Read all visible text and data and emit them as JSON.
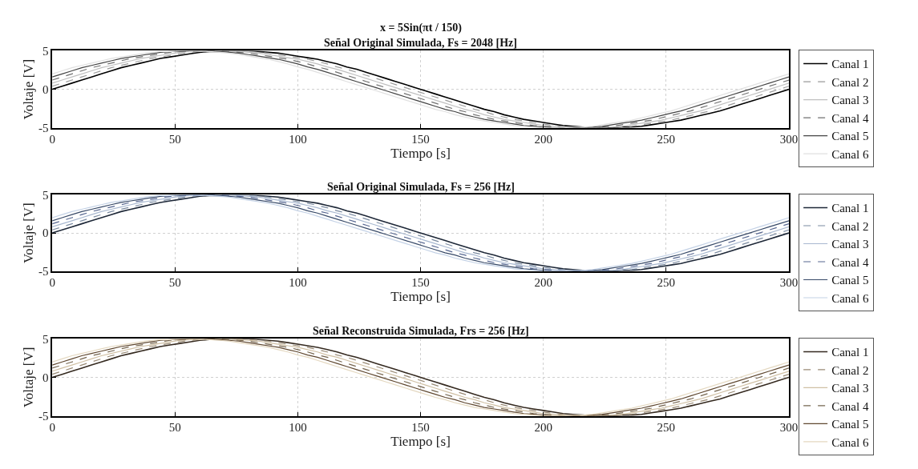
{
  "chart_data": [
    {
      "type": "line",
      "title": "x = 5Sin(πt / 150)",
      "subtitle": "Señal Original Simulada, Fs = 2048 [Hz]",
      "xlabel": "Tiempo [s]",
      "ylabel": "Voltaje [V]",
      "xlim": [
        0,
        300
      ],
      "xticks": [
        0,
        50,
        100,
        150,
        200,
        250,
        300
      ],
      "ylim": [
        -5,
        5
      ],
      "yticks": [
        -5,
        0,
        5
      ],
      "grid": true,
      "legend": "right",
      "marker": "none",
      "x": [
        0,
        4,
        8,
        12,
        16,
        20,
        24,
        28,
        32,
        36,
        40,
        44,
        48,
        52,
        56,
        60,
        64,
        68,
        72,
        76,
        80,
        84,
        88,
        92,
        96,
        100,
        104,
        108,
        112,
        116,
        120,
        124,
        128,
        132,
        136,
        140,
        144,
        148,
        152,
        156,
        160,
        164,
        168,
        172,
        176,
        180,
        184,
        188,
        192,
        196,
        200,
        204,
        208,
        212,
        216,
        220,
        224,
        228,
        232,
        236,
        240,
        244,
        248,
        252,
        256,
        260,
        264,
        268,
        272,
        276,
        280,
        284,
        288,
        292,
        296,
        300
      ],
      "series": [
        {
          "name": "Canal 1",
          "color": "#000000",
          "line_style": "solid",
          "values": [
            0,
            0.4,
            0.8,
            1.2,
            1.6,
            2.0,
            2.4,
            2.8,
            3.1,
            3.4,
            3.7,
            4.0,
            4.2,
            4.4,
            4.6,
            4.8,
            4.9,
            4.9,
            5.0,
            5.0,
            5.0,
            4.9,
            4.8,
            4.7,
            4.5,
            4.3,
            4.1,
            3.9,
            3.6,
            3.3,
            2.9,
            2.6,
            2.2,
            1.8,
            1.4,
            1.0,
            0.6,
            0.2,
            -0.2,
            -0.6,
            -1.0,
            -1.4,
            -1.8,
            -2.2,
            -2.6,
            -2.9,
            -3.3,
            -3.6,
            -3.9,
            -4.1,
            -4.3,
            -4.5,
            -4.7,
            -4.8,
            -4.9,
            -5.0,
            -5.0,
            -5.0,
            -4.9,
            -4.9,
            -4.8,
            -4.6,
            -4.4,
            -4.2,
            -4.0,
            -3.7,
            -3.4,
            -3.1,
            -2.8,
            -2.4,
            -2.0,
            -1.6,
            -1.2,
            -0.8,
            -0.4,
            0
          ]
        },
        {
          "name": "Canal 2",
          "color": "#9a9a9a",
          "line_style": "dashed",
          "values": [
            0.4,
            0.8,
            1.2,
            1.6,
            2.0,
            2.4,
            2.8,
            3.1,
            3.4,
            3.7,
            4.0,
            4.2,
            4.4,
            4.6,
            4.8,
            4.9,
            4.9,
            5.0,
            5.0,
            5.0,
            4.9,
            4.8,
            4.7,
            4.5,
            4.3,
            4.1,
            3.9,
            3.6,
            3.3,
            2.9,
            2.6,
            2.2,
            1.8,
            1.4,
            1.0,
            0.6,
            0.2,
            -0.2,
            -0.6,
            -1.0,
            -1.4,
            -1.8,
            -2.2,
            -2.6,
            -2.9,
            -3.3,
            -3.6,
            -3.9,
            -4.1,
            -4.3,
            -4.5,
            -4.7,
            -4.8,
            -4.9,
            -5.0,
            -5.0,
            -5.0,
            -4.9,
            -4.9,
            -4.8,
            -4.6,
            -4.4,
            -4.2,
            -4.0,
            -3.7,
            -3.4,
            -3.1,
            -2.8,
            -2.4,
            -2.0,
            -1.6,
            -1.2,
            -0.8,
            -0.4,
            0,
            0.4
          ]
        },
        {
          "name": "Canal 3",
          "color": "#c0c0c0",
          "line_style": "solid",
          "values": [
            0.8,
            1.2,
            1.6,
            2.0,
            2.4,
            2.8,
            3.1,
            3.4,
            3.7,
            4.0,
            4.2,
            4.4,
            4.6,
            4.8,
            4.9,
            4.9,
            5.0,
            5.0,
            5.0,
            4.9,
            4.8,
            4.7,
            4.5,
            4.3,
            4.1,
            3.9,
            3.6,
            3.3,
            2.9,
            2.6,
            2.2,
            1.8,
            1.4,
            1.0,
            0.6,
            0.2,
            -0.2,
            -0.6,
            -1.0,
            -1.4,
            -1.8,
            -2.2,
            -2.6,
            -2.9,
            -3.3,
            -3.6,
            -3.9,
            -4.1,
            -4.3,
            -4.5,
            -4.7,
            -4.8,
            -4.9,
            -5.0,
            -5.0,
            -5.0,
            -4.9,
            -4.9,
            -4.8,
            -4.6,
            -4.4,
            -4.2,
            -4.0,
            -3.7,
            -3.4,
            -3.1,
            -2.8,
            -2.4,
            -2.0,
            -1.6,
            -1.2,
            -0.8,
            -0.4,
            0,
            0.4,
            0.8
          ]
        },
        {
          "name": "Canal 4",
          "color": "#707070",
          "line_style": "dashed",
          "values": [
            1.2,
            1.6,
            2.0,
            2.4,
            2.8,
            3.1,
            3.4,
            3.7,
            4.0,
            4.2,
            4.4,
            4.6,
            4.8,
            4.9,
            4.9,
            5.0,
            5.0,
            5.0,
            4.9,
            4.8,
            4.7,
            4.5,
            4.3,
            4.1,
            3.9,
            3.6,
            3.3,
            2.9,
            2.6,
            2.2,
            1.8,
            1.4,
            1.0,
            0.6,
            0.2,
            -0.2,
            -0.6,
            -1.0,
            -1.4,
            -1.8,
            -2.2,
            -2.6,
            -2.9,
            -3.3,
            -3.6,
            -3.9,
            -4.1,
            -4.3,
            -4.5,
            -4.7,
            -4.8,
            -4.9,
            -5.0,
            -5.0,
            -5.0,
            -4.9,
            -4.9,
            -4.8,
            -4.6,
            -4.4,
            -4.2,
            -4.0,
            -3.7,
            -3.4,
            -3.1,
            -2.8,
            -2.4,
            -2.0,
            -1.6,
            -1.2,
            -0.8,
            -0.4,
            0,
            0.4,
            0.8,
            1.2
          ]
        },
        {
          "name": "Canal 5",
          "color": "#454545",
          "line_style": "solid",
          "values": [
            1.6,
            2.0,
            2.4,
            2.8,
            3.1,
            3.4,
            3.7,
            4.0,
            4.2,
            4.4,
            4.6,
            4.8,
            4.9,
            4.9,
            5.0,
            5.0,
            5.0,
            4.9,
            4.8,
            4.7,
            4.5,
            4.3,
            4.1,
            3.9,
            3.6,
            3.3,
            2.9,
            2.6,
            2.2,
            1.8,
            1.4,
            1.0,
            0.6,
            0.2,
            -0.2,
            -0.6,
            -1.0,
            -1.4,
            -1.8,
            -2.2,
            -2.6,
            -2.9,
            -3.3,
            -3.6,
            -3.9,
            -4.1,
            -4.3,
            -4.5,
            -4.7,
            -4.8,
            -4.9,
            -5.0,
            -5.0,
            -5.0,
            -4.9,
            -4.9,
            -4.8,
            -4.6,
            -4.4,
            -4.2,
            -4.0,
            -3.7,
            -3.4,
            -3.1,
            -2.8,
            -2.4,
            -2.0,
            -1.6,
            -1.2,
            -0.8,
            -0.4,
            0,
            0.4,
            0.8,
            1.2,
            1.6
          ]
        },
        {
          "name": "Canal 6",
          "color": "#e0e0e0",
          "line_style": "solid",
          "values": [
            2.0,
            2.4,
            2.8,
            3.1,
            3.4,
            3.7,
            4.0,
            4.2,
            4.4,
            4.6,
            4.8,
            4.9,
            4.9,
            5.0,
            5.0,
            5.0,
            4.9,
            4.8,
            4.7,
            4.5,
            4.3,
            4.1,
            3.9,
            3.6,
            3.3,
            2.9,
            2.6,
            2.2,
            1.8,
            1.4,
            1.0,
            0.6,
            0.2,
            -0.2,
            -0.6,
            -1.0,
            -1.4,
            -1.8,
            -2.2,
            -2.6,
            -2.9,
            -3.3,
            -3.6,
            -3.9,
            -4.1,
            -4.3,
            -4.5,
            -4.7,
            -4.8,
            -4.9,
            -5.0,
            -5.0,
            -5.0,
            -4.9,
            -4.9,
            -4.8,
            -4.6,
            -4.4,
            -4.2,
            -4.0,
            -3.7,
            -3.4,
            -3.1,
            -2.8,
            -2.4,
            -2.0,
            -1.6,
            -1.2,
            -0.8,
            -0.4,
            0,
            0.4,
            0.8,
            1.2,
            1.6,
            2.0
          ]
        }
      ]
    },
    {
      "type": "line",
      "title": "Señal Original Simulada, Fs = 256 [Hz]",
      "xlabel": "Tiempo [s]",
      "ylabel": "Voltaje [V]",
      "xlim": [
        0,
        300
      ],
      "xticks": [
        0,
        50,
        100,
        150,
        200,
        250,
        300
      ],
      "ylim": [
        -5,
        5
      ],
      "yticks": [
        -5,
        0,
        5
      ],
      "grid": true,
      "legend": "right",
      "marker": "none",
      "x": [
        0,
        4,
        8,
        12,
        16,
        20,
        24,
        28,
        32,
        36,
        40,
        44,
        48,
        52,
        56,
        60,
        64,
        68,
        72,
        76,
        80,
        84,
        88,
        92,
        96,
        100,
        104,
        108,
        112,
        116,
        120,
        124,
        128,
        132,
        136,
        140,
        144,
        148,
        152,
        156,
        160,
        164,
        168,
        172,
        176,
        180,
        184,
        188,
        192,
        196,
        200,
        204,
        208,
        212,
        216,
        220,
        224,
        228,
        232,
        236,
        240,
        244,
        248,
        252,
        256,
        260,
        264,
        268,
        272,
        276,
        280,
        284,
        288,
        292,
        296,
        300
      ],
      "series": [
        {
          "name": "Canal 1",
          "color": "#1e2838",
          "line_style": "solid",
          "values": [
            0,
            0.4,
            0.8,
            1.2,
            1.6,
            2.0,
            2.4,
            2.8,
            3.1,
            3.4,
            3.7,
            4.0,
            4.2,
            4.4,
            4.6,
            4.8,
            4.9,
            4.9,
            5.0,
            5.0,
            5.0,
            4.9,
            4.8,
            4.7,
            4.5,
            4.3,
            4.1,
            3.9,
            3.6,
            3.3,
            2.9,
            2.6,
            2.2,
            1.8,
            1.4,
            1.0,
            0.6,
            0.2,
            -0.2,
            -0.6,
            -1.0,
            -1.4,
            -1.8,
            -2.2,
            -2.6,
            -2.9,
            -3.3,
            -3.6,
            -3.9,
            -4.1,
            -4.3,
            -4.5,
            -4.7,
            -4.8,
            -4.9,
            -5.0,
            -5.0,
            -5.0,
            -4.9,
            -4.9,
            -4.8,
            -4.6,
            -4.4,
            -4.2,
            -4.0,
            -3.7,
            -3.4,
            -3.1,
            -2.8,
            -2.4,
            -2.0,
            -1.6,
            -1.2,
            -0.8,
            -0.4,
            0
          ]
        },
        {
          "name": "Canal 2",
          "color": "#7a8aa0",
          "line_style": "dashed",
          "values": [
            0.4,
            0.8,
            1.2,
            1.6,
            2.0,
            2.4,
            2.8,
            3.1,
            3.4,
            3.7,
            4.0,
            4.2,
            4.4,
            4.6,
            4.8,
            4.9,
            4.9,
            5.0,
            5.0,
            5.0,
            4.9,
            4.8,
            4.7,
            4.5,
            4.3,
            4.1,
            3.9,
            3.6,
            3.3,
            2.9,
            2.6,
            2.2,
            1.8,
            1.4,
            1.0,
            0.6,
            0.2,
            -0.2,
            -0.6,
            -1.0,
            -1.4,
            -1.8,
            -2.2,
            -2.6,
            -2.9,
            -3.3,
            -3.6,
            -3.9,
            -4.1,
            -4.3,
            -4.5,
            -4.7,
            -4.8,
            -4.9,
            -5.0,
            -5.0,
            -5.0,
            -4.9,
            -4.9,
            -4.8,
            -4.6,
            -4.4,
            -4.2,
            -4.0,
            -3.7,
            -3.4,
            -3.1,
            -2.8,
            -2.4,
            -2.0,
            -1.6,
            -1.2,
            -0.8,
            -0.4,
            0,
            0.4
          ]
        },
        {
          "name": "Canal 3",
          "color": "#a8b8d0",
          "line_style": "solid",
          "values": [
            0.8,
            1.2,
            1.6,
            2.0,
            2.4,
            2.8,
            3.1,
            3.4,
            3.7,
            4.0,
            4.2,
            4.4,
            4.6,
            4.8,
            4.9,
            4.9,
            5.0,
            5.0,
            5.0,
            4.9,
            4.8,
            4.7,
            4.5,
            4.3,
            4.1,
            3.9,
            3.6,
            3.3,
            2.9,
            2.6,
            2.2,
            1.8,
            1.4,
            1.0,
            0.6,
            0.2,
            -0.2,
            -0.6,
            -1.0,
            -1.4,
            -1.8,
            -2.2,
            -2.6,
            -2.9,
            -3.3,
            -3.6,
            -3.9,
            -4.1,
            -4.3,
            -4.5,
            -4.7,
            -4.8,
            -4.9,
            -5.0,
            -5.0,
            -5.0,
            -4.9,
            -4.9,
            -4.8,
            -4.6,
            -4.4,
            -4.2,
            -4.0,
            -3.7,
            -3.4,
            -3.1,
            -2.8,
            -2.4,
            -2.0,
            -1.6,
            -1.2,
            -0.8,
            -0.4,
            0,
            0.4,
            0.8
          ]
        },
        {
          "name": "Canal 4",
          "color": "#566690",
          "line_style": "dashed",
          "values": [
            1.2,
            1.6,
            2.0,
            2.4,
            2.8,
            3.1,
            3.4,
            3.7,
            4.0,
            4.2,
            4.4,
            4.6,
            4.8,
            4.9,
            4.9,
            5.0,
            5.0,
            5.0,
            4.9,
            4.8,
            4.7,
            4.5,
            4.3,
            4.1,
            3.9,
            3.6,
            3.3,
            2.9,
            2.6,
            2.2,
            1.8,
            1.4,
            1.0,
            0.6,
            0.2,
            -0.2,
            -0.6,
            -1.0,
            -1.4,
            -1.8,
            -2.2,
            -2.6,
            -2.9,
            -3.3,
            -3.6,
            -3.9,
            -4.1,
            -4.3,
            -4.5,
            -4.7,
            -4.8,
            -4.9,
            -5.0,
            -5.0,
            -5.0,
            -4.9,
            -4.9,
            -4.8,
            -4.6,
            -4.4,
            -4.2,
            -4.0,
            -3.7,
            -3.4,
            -3.1,
            -2.8,
            -2.4,
            -2.0,
            -1.6,
            -1.2,
            -0.8,
            -0.4,
            0,
            0.4,
            0.8,
            1.2
          ]
        },
        {
          "name": "Canal 5",
          "color": "#384a68",
          "line_style": "solid",
          "values": [
            1.6,
            2.0,
            2.4,
            2.8,
            3.1,
            3.4,
            3.7,
            4.0,
            4.2,
            4.4,
            4.6,
            4.8,
            4.9,
            4.9,
            5.0,
            5.0,
            5.0,
            4.9,
            4.8,
            4.7,
            4.5,
            4.3,
            4.1,
            3.9,
            3.6,
            3.3,
            2.9,
            2.6,
            2.2,
            1.8,
            1.4,
            1.0,
            0.6,
            0.2,
            -0.2,
            -0.6,
            -1.0,
            -1.4,
            -1.8,
            -2.2,
            -2.6,
            -2.9,
            -3.3,
            -3.6,
            -3.9,
            -4.1,
            -4.3,
            -4.5,
            -4.7,
            -4.8,
            -4.9,
            -5.0,
            -5.0,
            -5.0,
            -4.9,
            -4.9,
            -4.8,
            -4.6,
            -4.4,
            -4.2,
            -4.0,
            -3.7,
            -3.4,
            -3.1,
            -2.8,
            -2.4,
            -2.0,
            -1.6,
            -1.2,
            -0.8,
            -0.4,
            0,
            0.4,
            0.8,
            1.2,
            1.6
          ]
        },
        {
          "name": "Canal 6",
          "color": "#c4d2e6",
          "line_style": "solid",
          "values": [
            2.0,
            2.4,
            2.8,
            3.1,
            3.4,
            3.7,
            4.0,
            4.2,
            4.4,
            4.6,
            4.8,
            4.9,
            4.9,
            5.0,
            5.0,
            5.0,
            4.9,
            4.8,
            4.7,
            4.5,
            4.3,
            4.1,
            3.9,
            3.6,
            3.3,
            2.9,
            2.6,
            2.2,
            1.8,
            1.4,
            1.0,
            0.6,
            0.2,
            -0.2,
            -0.6,
            -1.0,
            -1.4,
            -1.8,
            -2.2,
            -2.6,
            -2.9,
            -3.3,
            -3.6,
            -3.9,
            -4.1,
            -4.3,
            -4.5,
            -4.7,
            -4.8,
            -4.9,
            -5.0,
            -5.0,
            -5.0,
            -4.9,
            -4.9,
            -4.8,
            -4.6,
            -4.4,
            -4.2,
            -4.0,
            -3.7,
            -3.4,
            -3.1,
            -2.8,
            -2.4,
            -2.0,
            -1.6,
            -1.2,
            -0.8,
            -0.4,
            0,
            0.4,
            0.8,
            1.2,
            1.6,
            2.0
          ]
        }
      ]
    },
    {
      "type": "line",
      "title": "Señal Reconstruida Simulada, Frs = 256 [Hz]",
      "xlabel": "Tiempo [s]",
      "ylabel": "Voltaje [V]",
      "xlim": [
        0,
        300
      ],
      "xticks": [
        0,
        50,
        100,
        150,
        200,
        250,
        300
      ],
      "ylim": [
        -5,
        5
      ],
      "yticks": [
        -5,
        0,
        5
      ],
      "grid": true,
      "legend": "right",
      "marker": "none",
      "x": [
        0,
        4,
        8,
        12,
        16,
        20,
        24,
        28,
        32,
        36,
        40,
        44,
        48,
        52,
        56,
        60,
        64,
        68,
        72,
        76,
        80,
        84,
        88,
        92,
        96,
        100,
        104,
        108,
        112,
        116,
        120,
        124,
        128,
        132,
        136,
        140,
        144,
        148,
        152,
        156,
        160,
        164,
        168,
        172,
        176,
        180,
        184,
        188,
        192,
        196,
        200,
        204,
        208,
        212,
        216,
        220,
        224,
        228,
        232,
        236,
        240,
        244,
        248,
        252,
        256,
        260,
        264,
        268,
        272,
        276,
        280,
        284,
        288,
        292,
        296,
        300
      ],
      "series": [
        {
          "name": "Canal 1",
          "color": "#352a20",
          "line_style": "solid",
          "values": [
            0,
            0.4,
            0.8,
            1.2,
            1.6,
            2.0,
            2.4,
            2.8,
            3.1,
            3.4,
            3.7,
            4.0,
            4.2,
            4.4,
            4.6,
            4.8,
            4.9,
            4.9,
            5.0,
            5.0,
            5.0,
            4.9,
            4.8,
            4.7,
            4.5,
            4.3,
            4.1,
            3.9,
            3.6,
            3.3,
            2.9,
            2.6,
            2.2,
            1.8,
            1.4,
            1.0,
            0.6,
            0.2,
            -0.2,
            -0.6,
            -1.0,
            -1.4,
            -1.8,
            -2.2,
            -2.6,
            -2.9,
            -3.3,
            -3.6,
            -3.9,
            -4.1,
            -4.3,
            -4.5,
            -4.7,
            -4.8,
            -4.9,
            -5.0,
            -5.0,
            -5.0,
            -4.9,
            -4.9,
            -4.8,
            -4.6,
            -4.4,
            -4.2,
            -4.0,
            -3.7,
            -3.4,
            -3.1,
            -2.8,
            -2.4,
            -2.0,
            -1.6,
            -1.2,
            -0.8,
            -0.4,
            0
          ]
        },
        {
          "name": "Canal 2",
          "color": "#998a75",
          "line_style": "dashed",
          "values": [
            0.4,
            0.8,
            1.2,
            1.6,
            2.0,
            2.4,
            2.8,
            3.1,
            3.4,
            3.7,
            4.0,
            4.2,
            4.4,
            4.6,
            4.8,
            4.9,
            4.9,
            5.0,
            5.0,
            5.0,
            4.9,
            4.8,
            4.7,
            4.5,
            4.3,
            4.1,
            3.9,
            3.6,
            3.3,
            2.9,
            2.6,
            2.2,
            1.8,
            1.4,
            1.0,
            0.6,
            0.2,
            -0.2,
            -0.6,
            -1.0,
            -1.4,
            -1.8,
            -2.2,
            -2.6,
            -2.9,
            -3.3,
            -3.6,
            -3.9,
            -4.1,
            -4.3,
            -4.5,
            -4.7,
            -4.8,
            -4.9,
            -5.0,
            -5.0,
            -5.0,
            -4.9,
            -4.9,
            -4.8,
            -4.6,
            -4.4,
            -4.2,
            -4.0,
            -3.7,
            -3.4,
            -3.1,
            -2.8,
            -2.4,
            -2.0,
            -1.6,
            -1.2,
            -0.8,
            -0.4,
            0,
            0.4
          ]
        },
        {
          "name": "Canal 3",
          "color": "#d0c0a4",
          "line_style": "solid",
          "values": [
            0.8,
            1.2,
            1.6,
            2.0,
            2.4,
            2.8,
            3.1,
            3.4,
            3.7,
            4.0,
            4.2,
            4.4,
            4.6,
            4.8,
            4.9,
            4.9,
            5.0,
            5.0,
            5.0,
            4.9,
            4.8,
            4.7,
            4.5,
            4.3,
            4.1,
            3.9,
            3.6,
            3.3,
            2.9,
            2.6,
            2.2,
            1.8,
            1.4,
            1.0,
            0.6,
            0.2,
            -0.2,
            -0.6,
            -1.0,
            -1.4,
            -1.8,
            -2.2,
            -2.6,
            -2.9,
            -3.3,
            -3.6,
            -3.9,
            -4.1,
            -4.3,
            -4.5,
            -4.7,
            -4.8,
            -4.9,
            -5.0,
            -5.0,
            -5.0,
            -4.9,
            -4.9,
            -4.8,
            -4.6,
            -4.4,
            -4.2,
            -4.0,
            -3.7,
            -3.4,
            -3.1,
            -2.8,
            -2.4,
            -2.0,
            -1.6,
            -1.2,
            -0.8,
            -0.4,
            0,
            0.4,
            0.8
          ]
        },
        {
          "name": "Canal 4",
          "color": "#75654f",
          "line_style": "dashed",
          "values": [
            1.2,
            1.6,
            2.0,
            2.4,
            2.8,
            3.1,
            3.4,
            3.7,
            4.0,
            4.2,
            4.4,
            4.6,
            4.8,
            4.9,
            4.9,
            5.0,
            5.0,
            5.0,
            4.9,
            4.8,
            4.7,
            4.5,
            4.3,
            4.1,
            3.9,
            3.6,
            3.3,
            2.9,
            2.6,
            2.2,
            1.8,
            1.4,
            1.0,
            0.6,
            0.2,
            -0.2,
            -0.6,
            -1.0,
            -1.4,
            -1.8,
            -2.2,
            -2.6,
            -2.9,
            -3.3,
            -3.6,
            -3.9,
            -4.1,
            -4.3,
            -4.5,
            -4.7,
            -4.8,
            -4.9,
            -5.0,
            -5.0,
            -5.0,
            -4.9,
            -4.9,
            -4.8,
            -4.6,
            -4.4,
            -4.2,
            -4.0,
            -3.7,
            -3.4,
            -3.1,
            -2.8,
            -2.4,
            -2.0,
            -1.6,
            -1.2,
            -0.8,
            -0.4,
            0,
            0.4,
            0.8,
            1.2
          ]
        },
        {
          "name": "Canal 5",
          "color": "#604830",
          "line_style": "solid",
          "values": [
            1.6,
            2.0,
            2.4,
            2.8,
            3.1,
            3.4,
            3.7,
            4.0,
            4.2,
            4.4,
            4.6,
            4.8,
            4.9,
            4.9,
            5.0,
            5.0,
            5.0,
            4.9,
            4.8,
            4.7,
            4.5,
            4.3,
            4.1,
            3.9,
            3.6,
            3.3,
            2.9,
            2.6,
            2.2,
            1.8,
            1.4,
            1.0,
            0.6,
            0.2,
            -0.2,
            -0.6,
            -1.0,
            -1.4,
            -1.8,
            -2.2,
            -2.6,
            -2.9,
            -3.3,
            -3.6,
            -3.9,
            -4.1,
            -4.3,
            -4.5,
            -4.7,
            -4.8,
            -4.9,
            -5.0,
            -5.0,
            -5.0,
            -4.9,
            -4.9,
            -4.8,
            -4.6,
            -4.4,
            -4.2,
            -4.0,
            -3.7,
            -3.4,
            -3.1,
            -2.8,
            -2.4,
            -2.0,
            -1.6,
            -1.2,
            -0.8,
            -0.4,
            0,
            0.4,
            0.8,
            1.2,
            1.6
          ]
        },
        {
          "name": "Canal 6",
          "color": "#e4d8c0",
          "line_style": "solid",
          "values": [
            2.0,
            2.4,
            2.8,
            3.1,
            3.4,
            3.7,
            4.0,
            4.2,
            4.4,
            4.6,
            4.8,
            4.9,
            4.9,
            5.0,
            5.0,
            5.0,
            4.9,
            4.8,
            4.7,
            4.5,
            4.3,
            4.1,
            3.9,
            3.6,
            3.3,
            2.9,
            2.6,
            2.2,
            1.8,
            1.4,
            1.0,
            0.6,
            0.2,
            -0.2,
            -0.6,
            -1.0,
            -1.4,
            -1.8,
            -2.2,
            -2.6,
            -2.9,
            -3.3,
            -3.6,
            -3.9,
            -4.1,
            -4.3,
            -4.5,
            -4.7,
            -4.8,
            -4.9,
            -5.0,
            -5.0,
            -5.0,
            -4.9,
            -4.9,
            -4.8,
            -4.6,
            -4.4,
            -4.2,
            -4.0,
            -3.7,
            -3.4,
            -3.1,
            -2.8,
            -2.4,
            -2.0,
            -1.6,
            -1.2,
            -0.8,
            -0.4,
            0,
            0.4,
            0.8,
            1.2,
            1.6,
            2.0
          ]
        }
      ]
    }
  ]
}
